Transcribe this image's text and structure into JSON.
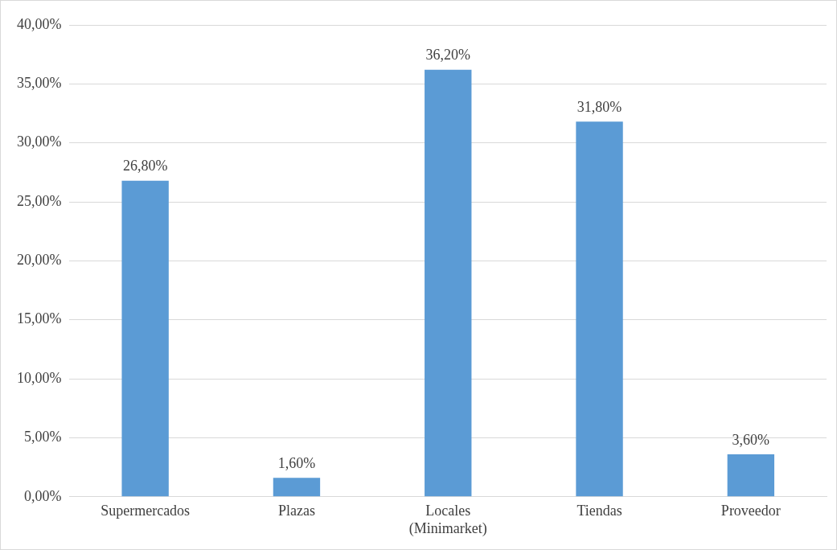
{
  "chart_data": {
    "type": "bar",
    "categories": [
      "Supermercados",
      "Plazas",
      "Locales (Minimarket)",
      "Tiendas",
      "Proveedor"
    ],
    "values": [
      26.8,
      1.6,
      36.2,
      31.8,
      3.6
    ],
    "value_labels": [
      "26,80%",
      "1,60%",
      "36,20%",
      "31,80%",
      "3,60%"
    ],
    "color": "#5b9bd5",
    "ylim": [
      0,
      40
    ],
    "yticks": [
      {
        "value": 0,
        "label": "0,00%"
      },
      {
        "value": 5,
        "label": "5,00%"
      },
      {
        "value": 10,
        "label": "10,00%"
      },
      {
        "value": 15,
        "label": "15,00%"
      },
      {
        "value": 20,
        "label": "20,00%"
      },
      {
        "value": 25,
        "label": "25,00%"
      },
      {
        "value": 30,
        "label": "30,00%"
      },
      {
        "value": 35,
        "label": "35,00%"
      },
      {
        "value": 40,
        "label": "40,00%"
      }
    ],
    "grid": "y",
    "legend": false
  }
}
